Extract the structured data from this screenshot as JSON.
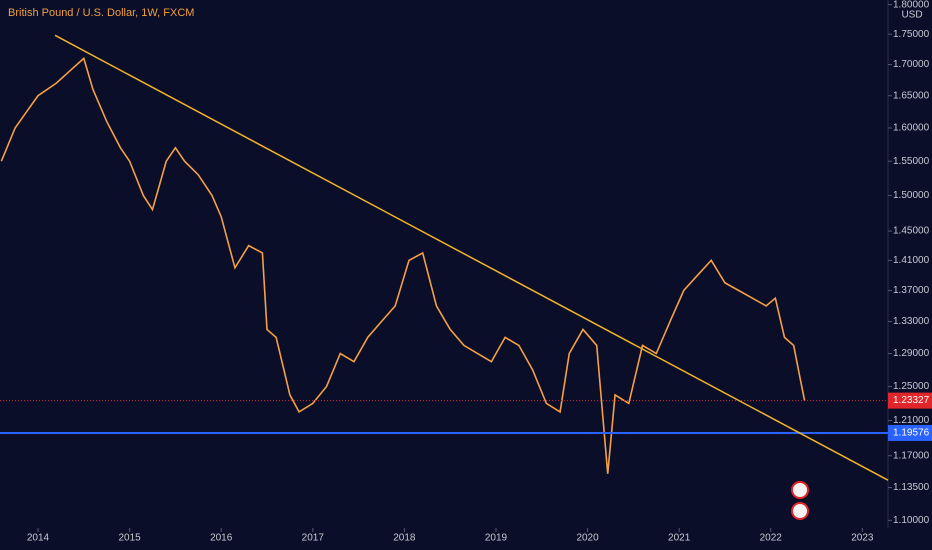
{
  "chart_data": {
    "type": "line",
    "title": "British Pound / U.S. Dollar, 1W, FXCM",
    "currency": "USD",
    "log_scale": true,
    "color": "#f5a044",
    "x": [
      2013.6,
      2013.75,
      2013.9,
      2014.0,
      2014.2,
      2014.35,
      2014.5,
      2014.6,
      2014.75,
      2014.9,
      2015.0,
      2015.15,
      2015.25,
      2015.4,
      2015.5,
      2015.6,
      2015.75,
      2015.9,
      2016.0,
      2016.15,
      2016.3,
      2016.45,
      2016.5,
      2016.6,
      2016.75,
      2016.85,
      2017.0,
      2017.15,
      2017.3,
      2017.45,
      2017.6,
      2017.75,
      2017.9,
      2018.05,
      2018.2,
      2018.35,
      2018.5,
      2018.65,
      2018.8,
      2018.95,
      2019.1,
      2019.25,
      2019.4,
      2019.55,
      2019.7,
      2019.8,
      2019.95,
      2020.1,
      2020.22,
      2020.3,
      2020.45,
      2020.6,
      2020.75,
      2020.9,
      2021.05,
      2021.2,
      2021.35,
      2021.5,
      2021.65,
      2021.8,
      2021.95,
      2022.05,
      2022.15,
      2022.25,
      2022.32,
      2022.37
    ],
    "values": [
      1.55,
      1.6,
      1.63,
      1.65,
      1.67,
      1.69,
      1.71,
      1.66,
      1.61,
      1.57,
      1.55,
      1.5,
      1.48,
      1.55,
      1.57,
      1.55,
      1.53,
      1.5,
      1.47,
      1.4,
      1.43,
      1.42,
      1.32,
      1.31,
      1.24,
      1.22,
      1.23,
      1.25,
      1.29,
      1.28,
      1.31,
      1.33,
      1.35,
      1.41,
      1.42,
      1.35,
      1.32,
      1.3,
      1.29,
      1.28,
      1.31,
      1.3,
      1.27,
      1.23,
      1.22,
      1.29,
      1.32,
      1.3,
      1.15,
      1.24,
      1.23,
      1.3,
      1.29,
      1.33,
      1.37,
      1.39,
      1.41,
      1.38,
      1.37,
      1.36,
      1.35,
      1.36,
      1.31,
      1.3,
      1.26,
      1.233
    ],
    "xlim": [
      2013.585,
      2023.28
    ],
    "xticks": [
      2014,
      2015,
      2016,
      2017,
      2018,
      2019,
      2020,
      2021,
      2022,
      2023
    ],
    "ylim": [
      1.092,
      1.808
    ],
    "yticks": [
      {
        "value": 1.1,
        "label": "1.10000"
      },
      {
        "value": 1.135,
        "label": "1.13500"
      },
      {
        "value": 1.17,
        "label": "1.17000"
      },
      {
        "value": 1.21,
        "label": "1.21000"
      },
      {
        "value": 1.25,
        "label": "1.25000"
      },
      {
        "value": 1.29,
        "label": "1.29000"
      },
      {
        "value": 1.33,
        "label": "1.33000"
      },
      {
        "value": 1.37,
        "label": "1.37000"
      },
      {
        "value": 1.41,
        "label": "1.41000"
      },
      {
        "value": 1.45,
        "label": "1.45000"
      },
      {
        "value": 1.5,
        "label": "1.50000"
      },
      {
        "value": 1.55,
        "label": "1.55000"
      },
      {
        "value": 1.6,
        "label": "1.60000"
      },
      {
        "value": 1.65,
        "label": "1.65000"
      },
      {
        "value": 1.7,
        "label": "1.70000"
      },
      {
        "value": 1.75,
        "label": "1.75000"
      },
      {
        "value": 1.8,
        "label": "1.80000"
      }
    ],
    "last_price": 1.23327,
    "last_price_color": "#e0262a",
    "hline": {
      "value": 1.19576,
      "color": "#2962ff"
    },
    "trendline": {
      "x": [
        2014.186,
        2023.28
      ],
      "y": [
        1.748,
        1.143
      ],
      "color": "#f0b429"
    }
  }
}
